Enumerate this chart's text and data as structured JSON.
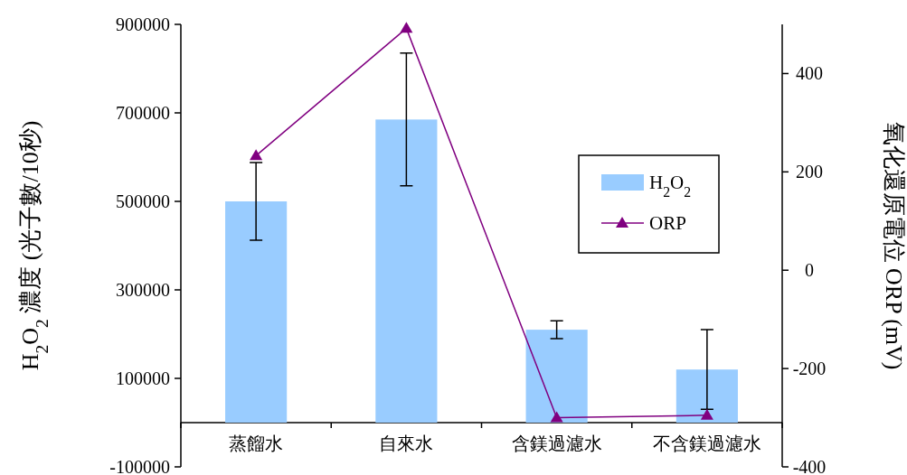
{
  "chart_data": {
    "type": "bar",
    "categories": [
      "蒸餾水",
      "自來水",
      "含鎂過濾水",
      "不含鎂過濾水"
    ],
    "ylabel": "H$_{2}$O$_{2}$ 濃度 (光子數/10秒)",
    "y2label": "氧化還原電位 ORP (mV)",
    "ylim": [
      -100000,
      900000
    ],
    "yticks": [
      -100000,
      100000,
      300000,
      500000,
      700000,
      900000
    ],
    "y2lim": [
      -400,
      500
    ],
    "y2ticks": [
      -400,
      -200,
      0,
      200,
      400
    ],
    "series": [
      {
        "name": "H$_{2}$O$_{2}$",
        "color": "#99ccff",
        "values": [
          500000,
          685000,
          210000,
          120000
        ],
        "errors": [
          88000,
          150000,
          20000,
          90000
        ]
      },
      {
        "name": "ORP",
        "type": "line",
        "axis": "y2",
        "color": "#800080",
        "marker": "triangle",
        "values": [
          233,
          492,
          -300,
          -295
        ]
      }
    ],
    "grid": false,
    "legend": "right"
  }
}
